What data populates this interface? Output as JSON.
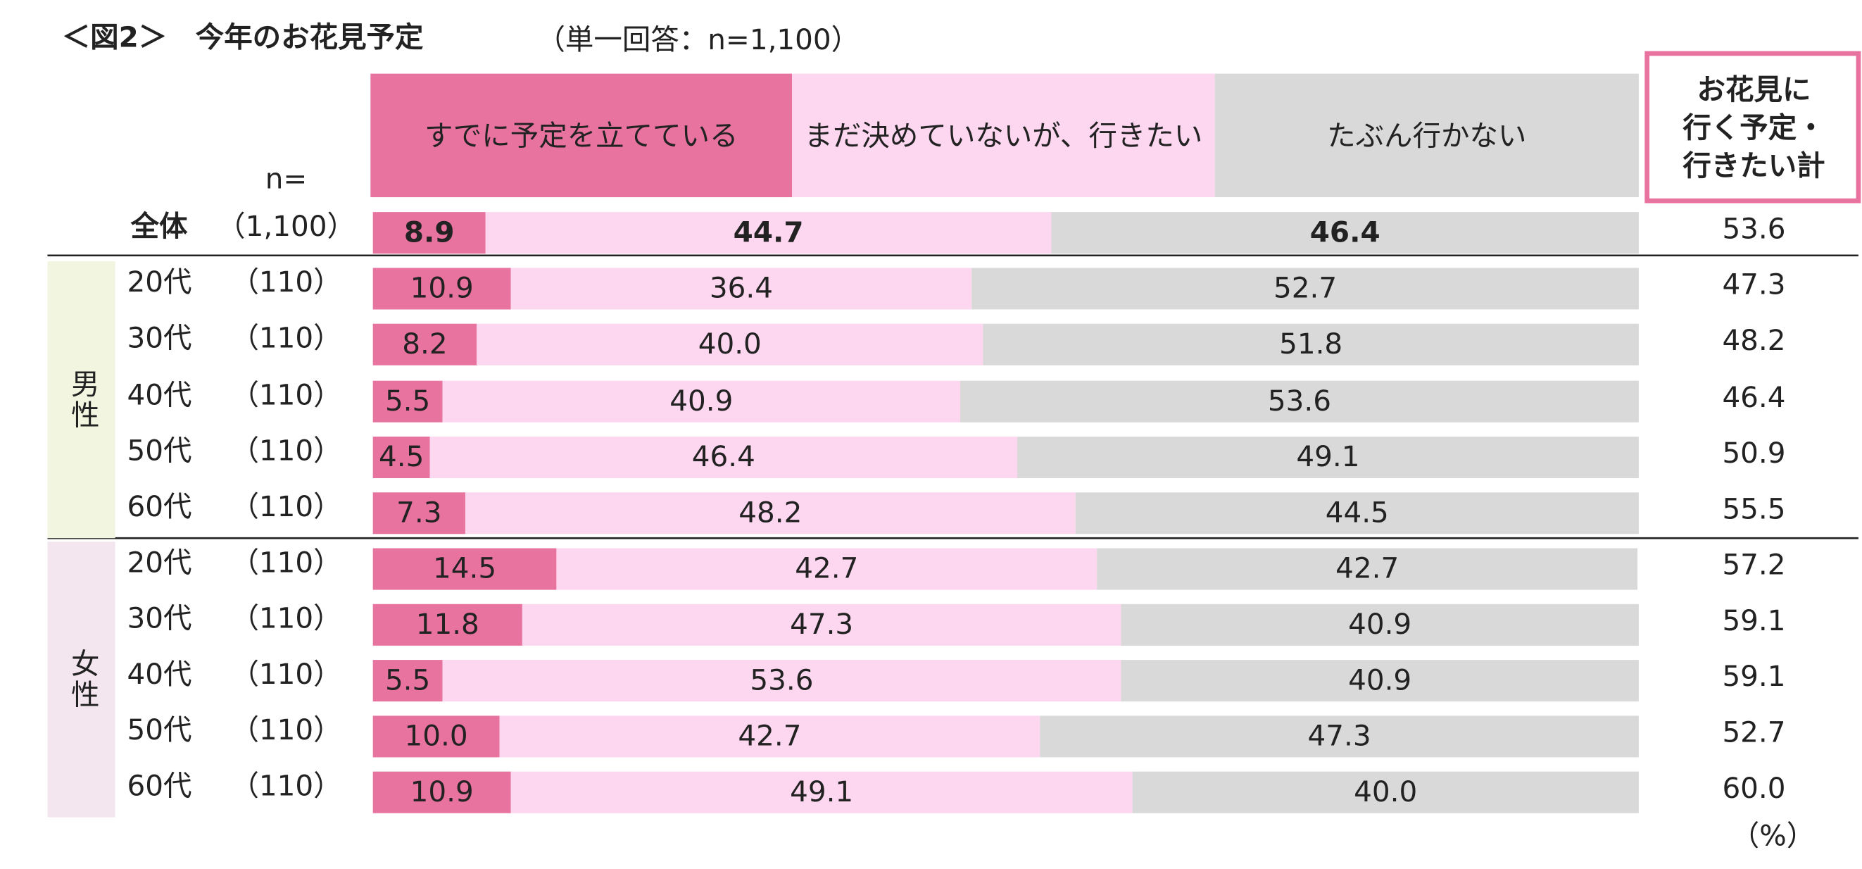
{
  "chart_data": {
    "type": "stacked-bar",
    "title": "＜図2＞　今年のお花見予定",
    "subtitle": "（単一回答：n=1,100）",
    "n_header": "n=",
    "categories": [
      "全体",
      "20代",
      "30代",
      "40代",
      "50代",
      "60代",
      "20代",
      "30代",
      "40代",
      "50代",
      "60代"
    ],
    "groups": [
      null,
      "男性",
      "男性",
      "男性",
      "男性",
      "男性",
      "女性",
      "女性",
      "女性",
      "女性",
      "女性"
    ],
    "n": [
      "（1,100）",
      "（110）",
      "（110）",
      "（110）",
      "（110）",
      "（110）",
      "（110）",
      "（110）",
      "（110）",
      "（110）",
      "（110）"
    ],
    "xlim": [
      0,
      100
    ],
    "series": [
      {
        "name": "すでに予定を立てている",
        "color": "#e8739f",
        "values": [
          8.9,
          10.9,
          8.2,
          5.5,
          4.5,
          7.3,
          14.5,
          11.8,
          5.5,
          10.0,
          10.9
        ],
        "value_labels": [
          "8.9",
          "10.9",
          "8.2",
          "5.5",
          "4.5",
          "7.3",
          "14.5",
          "11.8",
          "5.5",
          "10.0",
          "10.9"
        ]
      },
      {
        "name": "まだ決めていないが、行きたい",
        "color": "#fdd6f0",
        "values": [
          44.7,
          36.4,
          40.0,
          40.9,
          46.4,
          48.2,
          42.7,
          47.3,
          53.6,
          42.7,
          49.1
        ],
        "value_labels": [
          "44.7",
          "36.4",
          "40.0",
          "40.9",
          "46.4",
          "48.2",
          "42.7",
          "47.3",
          "53.6",
          "42.7",
          "49.1"
        ]
      },
      {
        "name": "たぶん行かない",
        "color": "#d9d9d9",
        "values": [
          46.4,
          52.7,
          51.8,
          53.6,
          49.1,
          44.5,
          42.7,
          40.9,
          40.9,
          47.3,
          40.0
        ],
        "value_labels": [
          "46.4",
          "52.7",
          "51.8",
          "53.6",
          "49.1",
          "44.5",
          "42.7",
          "40.9",
          "40.9",
          "47.3",
          "40.0"
        ]
      }
    ],
    "total": {
      "header": [
        "お花見に",
        "行く予定・",
        "行きたい計"
      ],
      "values": [
        53.6,
        47.3,
        48.2,
        46.4,
        50.9,
        55.5,
        57.2,
        59.1,
        59.1,
        52.7,
        60.0
      ],
      "value_labels": [
        "53.6",
        "47.3",
        "48.2",
        "46.4",
        "50.9",
        "55.5",
        "57.2",
        "59.1",
        "59.1",
        "52.7",
        "60.0"
      ]
    },
    "unit": "（%）"
  }
}
